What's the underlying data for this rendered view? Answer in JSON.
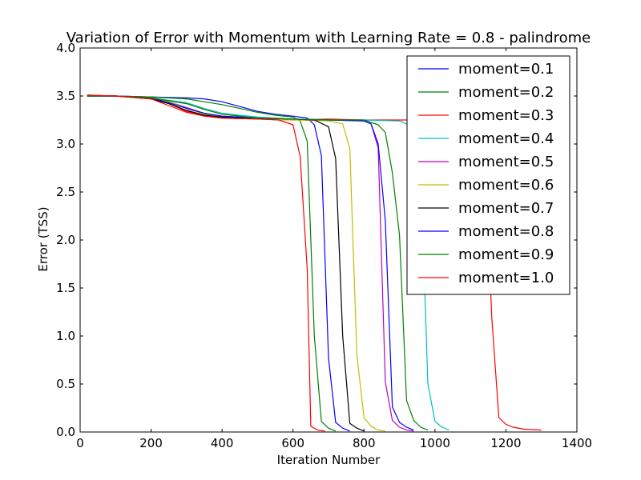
{
  "chart_data": {
    "type": "line",
    "title": "Variation of Error with Momentum with Learning Rate = 0.8 - palindrome",
    "xlabel": "Iteration Number",
    "ylabel": "Error (TSS)",
    "xlim": [
      0,
      1400
    ],
    "ylim": [
      0,
      4.0
    ],
    "xticks": [
      0,
      200,
      400,
      600,
      800,
      1000,
      1200,
      1400
    ],
    "xtick_labels": [
      "0",
      "200",
      "400",
      "600",
      "800",
      "1000",
      "1200",
      "1400"
    ],
    "yticks": [
      0,
      0.5,
      1.0,
      1.5,
      2.0,
      2.5,
      3.0,
      3.5,
      4.0
    ],
    "ytick_labels": [
      "0.0",
      "0.5",
      "1.0",
      "1.5",
      "2.0",
      "2.5",
      "3.0",
      "3.5",
      "4.0"
    ],
    "grid": false,
    "legend_position": "top-right",
    "series": [
      {
        "name": "moment=0.1",
        "color": "#0000ff",
        "points": [
          [
            20,
            3.5
          ],
          [
            100,
            3.5
          ],
          [
            200,
            3.49
          ],
          [
            300,
            3.48
          ],
          [
            350,
            3.47
          ],
          [
            400,
            3.44
          ],
          [
            450,
            3.39
          ],
          [
            500,
            3.34
          ],
          [
            550,
            3.31
          ],
          [
            600,
            3.29
          ],
          [
            640,
            3.27
          ],
          [
            660,
            3.2
          ],
          [
            680,
            2.88
          ],
          [
            700,
            0.77
          ],
          [
            720,
            0.1
          ],
          [
            740,
            0.04
          ],
          [
            760,
            0.01
          ]
        ]
      },
      {
        "name": "moment=0.2",
        "color": "#008000",
        "points": [
          [
            20,
            3.5
          ],
          [
            100,
            3.5
          ],
          [
            200,
            3.49
          ],
          [
            300,
            3.47
          ],
          [
            350,
            3.44
          ],
          [
            400,
            3.41
          ],
          [
            450,
            3.37
          ],
          [
            500,
            3.33
          ],
          [
            550,
            3.3
          ],
          [
            600,
            3.28
          ],
          [
            620,
            3.24
          ],
          [
            640,
            3.03
          ],
          [
            660,
            1.0
          ],
          [
            680,
            0.11
          ],
          [
            700,
            0.04
          ],
          [
            720,
            0.01
          ]
        ]
      },
      {
        "name": "moment=0.3",
        "color": "#ff0000",
        "points": [
          [
            20,
            3.51
          ],
          [
            100,
            3.5
          ],
          [
            200,
            3.47
          ],
          [
            250,
            3.42
          ],
          [
            300,
            3.34
          ],
          [
            350,
            3.29
          ],
          [
            400,
            3.27
          ],
          [
            500,
            3.26
          ],
          [
            600,
            3.25
          ],
          [
            700,
            3.26
          ],
          [
            800,
            3.25
          ],
          [
            900,
            3.25
          ],
          [
            1000,
            3.25
          ],
          [
            1100,
            3.24
          ],
          [
            1140,
            3.1
          ],
          [
            1160,
            1.2
          ],
          [
            1180,
            0.15
          ],
          [
            1200,
            0.08
          ],
          [
            1220,
            0.05
          ],
          [
            1250,
            0.03
          ],
          [
            1300,
            0.02
          ]
        ]
      },
      {
        "name": "moment=0.4",
        "color": "#00bfbf",
        "points": [
          [
            20,
            3.5
          ],
          [
            100,
            3.5
          ],
          [
            200,
            3.48
          ],
          [
            300,
            3.43
          ],
          [
            350,
            3.37
          ],
          [
            400,
            3.32
          ],
          [
            500,
            3.28
          ],
          [
            600,
            3.26
          ],
          [
            700,
            3.25
          ],
          [
            800,
            3.25
          ],
          [
            900,
            3.24
          ],
          [
            920,
            3.21
          ],
          [
            940,
            3.1
          ],
          [
            960,
            2.75
          ],
          [
            980,
            0.5
          ],
          [
            1000,
            0.11
          ],
          [
            1020,
            0.05
          ],
          [
            1040,
            0.02
          ]
        ]
      },
      {
        "name": "moment=0.5",
        "color": "#bf00bf",
        "points": [
          [
            20,
            3.5
          ],
          [
            100,
            3.5
          ],
          [
            200,
            3.48
          ],
          [
            250,
            3.44
          ],
          [
            300,
            3.38
          ],
          [
            350,
            3.32
          ],
          [
            400,
            3.29
          ],
          [
            500,
            3.27
          ],
          [
            600,
            3.26
          ],
          [
            700,
            3.25
          ],
          [
            800,
            3.24
          ],
          [
            820,
            3.21
          ],
          [
            840,
            2.96
          ],
          [
            860,
            0.52
          ],
          [
            880,
            0.12
          ],
          [
            900,
            0.05
          ],
          [
            920,
            0.02
          ],
          [
            940,
            0.01
          ]
        ]
      },
      {
        "name": "moment=0.6",
        "color": "#bfbf00",
        "points": [
          [
            20,
            3.5
          ],
          [
            100,
            3.5
          ],
          [
            200,
            3.48
          ],
          [
            250,
            3.44
          ],
          [
            300,
            3.37
          ],
          [
            350,
            3.31
          ],
          [
            400,
            3.28
          ],
          [
            500,
            3.26
          ],
          [
            600,
            3.25
          ],
          [
            700,
            3.24
          ],
          [
            740,
            3.21
          ],
          [
            760,
            2.95
          ],
          [
            780,
            0.8
          ],
          [
            800,
            0.15
          ],
          [
            820,
            0.06
          ],
          [
            840,
            0.02
          ],
          [
            860,
            0.01
          ]
        ]
      },
      {
        "name": "moment=0.7",
        "color": "#000000",
        "points": [
          [
            20,
            3.5
          ],
          [
            100,
            3.5
          ],
          [
            200,
            3.47
          ],
          [
            250,
            3.42
          ],
          [
            300,
            3.35
          ],
          [
            350,
            3.3
          ],
          [
            400,
            3.28
          ],
          [
            500,
            3.27
          ],
          [
            600,
            3.26
          ],
          [
            660,
            3.25
          ],
          [
            700,
            3.18
          ],
          [
            720,
            2.85
          ],
          [
            740,
            1.0
          ],
          [
            760,
            0.09
          ],
          [
            780,
            0.04
          ],
          [
            800,
            0.01
          ]
        ]
      },
      {
        "name": "moment=0.8",
        "color": "#0000ff",
        "points": [
          [
            20,
            3.5
          ],
          [
            100,
            3.5
          ],
          [
            200,
            3.48
          ],
          [
            250,
            3.43
          ],
          [
            300,
            3.37
          ],
          [
            350,
            3.32
          ],
          [
            400,
            3.29
          ],
          [
            500,
            3.27
          ],
          [
            600,
            3.26
          ],
          [
            700,
            3.25
          ],
          [
            800,
            3.24
          ],
          [
            820,
            3.21
          ],
          [
            840,
            3.0
          ],
          [
            860,
            2.2
          ],
          [
            880,
            0.26
          ],
          [
            900,
            0.1
          ],
          [
            920,
            0.05
          ],
          [
            940,
            0.02
          ]
        ]
      },
      {
        "name": "moment=0.9",
        "color": "#008000",
        "points": [
          [
            20,
            3.5
          ],
          [
            100,
            3.5
          ],
          [
            200,
            3.48
          ],
          [
            300,
            3.42
          ],
          [
            350,
            3.36
          ],
          [
            400,
            3.31
          ],
          [
            500,
            3.27
          ],
          [
            600,
            3.26
          ],
          [
            700,
            3.25
          ],
          [
            800,
            3.25
          ],
          [
            840,
            3.2
          ],
          [
            860,
            3.12
          ],
          [
            880,
            2.7
          ],
          [
            900,
            2.05
          ],
          [
            920,
            0.33
          ],
          [
            940,
            0.12
          ],
          [
            960,
            0.05
          ],
          [
            980,
            0.02
          ]
        ]
      },
      {
        "name": "moment=1.0",
        "color": "#ff0000",
        "points": [
          [
            20,
            3.51
          ],
          [
            100,
            3.5
          ],
          [
            200,
            3.47
          ],
          [
            250,
            3.4
          ],
          [
            300,
            3.33
          ],
          [
            350,
            3.29
          ],
          [
            400,
            3.27
          ],
          [
            500,
            3.26
          ],
          [
            560,
            3.25
          ],
          [
            600,
            3.2
          ],
          [
            620,
            2.87
          ],
          [
            640,
            1.7
          ],
          [
            650,
            0.06
          ],
          [
            670,
            0.02
          ],
          [
            690,
            0.01
          ]
        ]
      }
    ]
  }
}
